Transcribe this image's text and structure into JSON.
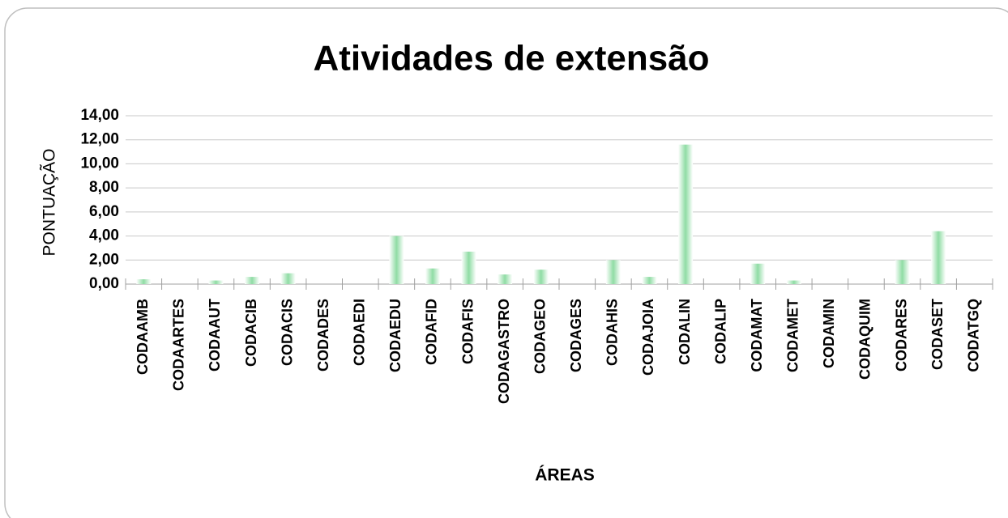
{
  "chart_data": {
    "type": "bar",
    "title": "Atividades de extensão",
    "y_label": "PONTUAÇÃO",
    "x_label": "ÁREAS",
    "categories": [
      "CODAAMB",
      "CODAARTES",
      "CODAAUT",
      "CODACIB",
      "CODACIS",
      "CODADES",
      "CODAEDI",
      "CODAEDU",
      "CODAFID",
      "CODAFIS",
      "CODAGASTRO",
      "CODAGEO",
      "CODAGES",
      "CODAHIS",
      "CODAJOIA",
      "CODALIN",
      "CODALIP",
      "CODAMAT",
      "CODAMET",
      "CODAMIN",
      "CODAQUIM",
      "CODARES",
      "CODASET",
      "CODATGQ"
    ],
    "values": [
      0.4,
      0,
      0.3,
      0.6,
      0.9,
      0,
      0,
      4.0,
      1.3,
      2.7,
      0.8,
      1.2,
      0,
      2.0,
      0.6,
      11.6,
      0,
      1.7,
      0.3,
      0,
      0,
      2.0,
      4.4,
      0
    ],
    "color": "#8fdca4",
    "ylim": [
      0,
      14
    ],
    "yticks": [
      {
        "value": 0,
        "label": "0,00"
      },
      {
        "value": 2,
        "label": "2,00"
      },
      {
        "value": 4,
        "label": "4,00"
      },
      {
        "value": 6,
        "label": "6,00"
      },
      {
        "value": 8,
        "label": "8,00"
      },
      {
        "value": 10,
        "label": "10,00"
      },
      {
        "value": 12,
        "label": "12,00"
      },
      {
        "value": 14,
        "label": "14,00"
      }
    ],
    "grid": true
  }
}
